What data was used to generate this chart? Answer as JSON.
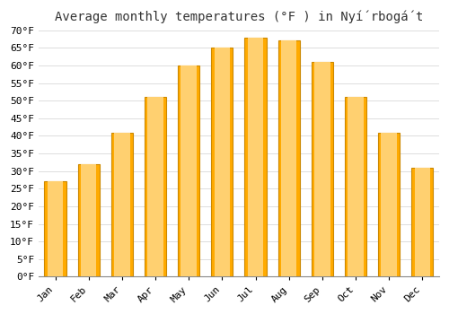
{
  "title": "Average monthly temperatures (°F ) in Nyí́rbogá́t",
  "months": [
    "Jan",
    "Feb",
    "Mar",
    "Apr",
    "May",
    "Jun",
    "Jul",
    "Aug",
    "Sep",
    "Oct",
    "Nov",
    "Dec"
  ],
  "values": [
    27,
    32,
    41,
    51,
    60,
    65,
    68,
    67,
    61,
    51,
    41,
    31
  ],
  "bar_color_main": "#FFAA00",
  "bar_color_light": "#FFD070",
  "bar_edge_color": "#CC8800",
  "background_color": "#FFFFFF",
  "grid_color": "#DDDDDD",
  "ylim": [
    0,
    70
  ],
  "yticks": [
    0,
    5,
    10,
    15,
    20,
    25,
    30,
    35,
    40,
    45,
    50,
    55,
    60,
    65,
    70
  ],
  "title_fontsize": 10,
  "tick_fontsize": 8,
  "bar_width": 0.65
}
